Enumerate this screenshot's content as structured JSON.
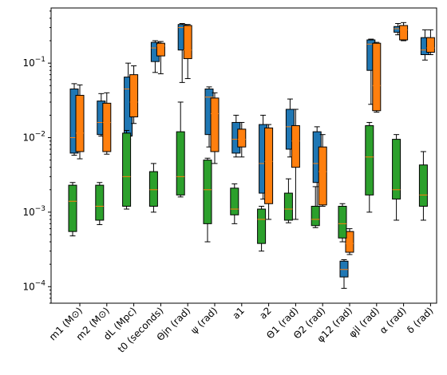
{
  "chart_data": {
    "type": "boxplot",
    "yscale": "log",
    "ylim": [
      6e-05,
      0.55
    ],
    "y_ticks": [
      {
        "value": 0.0001,
        "base": "10",
        "exp": "−4"
      },
      {
        "value": 0.001,
        "base": "10",
        "exp": "−3"
      },
      {
        "value": 0.01,
        "base": "10",
        "exp": "−2"
      },
      {
        "value": 0.1,
        "base": "10",
        "exp": "−1"
      }
    ],
    "categories": [
      "m1 (M⊙)",
      "m2 (M⊙)",
      "dL (Mpc)",
      "t0 (seconds)",
      "Θjn (rad)",
      "ψ (rad)",
      "a1",
      "a2",
      "Θ1 (rad)",
      "Θ2 (rad)",
      "φ12 (rad)",
      "φjl (rad)",
      "α (rad)",
      "δ (rad)"
    ],
    "series": [
      {
        "color": "#1f77b4",
        "boxes": [
          {
            "cat": 0,
            "whislo": 0.0058,
            "q1": 0.0062,
            "med": 0.01,
            "q3": 0.045,
            "whishi": 0.053
          },
          {
            "cat": 1,
            "whislo": 0.0105,
            "q1": 0.011,
            "med": 0.016,
            "q3": 0.031,
            "whishi": 0.039
          },
          {
            "cat": 2,
            "whislo": 0.0095,
            "q1": 0.0105,
            "med": 0.045,
            "q3": 0.065,
            "whishi": 0.1
          },
          {
            "cat": 3,
            "whislo": 0.075,
            "q1": 0.105,
            "med": 0.16,
            "q3": 0.19,
            "whishi": 0.2
          },
          {
            "cat": 4,
            "whislo": 0.055,
            "q1": 0.15,
            "med": 0.3,
            "q3": 0.33,
            "whishi": 0.34
          },
          {
            "cat": 5,
            "whislo": 0.0075,
            "q1": 0.011,
            "med": 0.035,
            "q3": 0.045,
            "whishi": 0.048
          },
          {
            "cat": 6,
            "whislo": 0.0055,
            "q1": 0.0062,
            "med": 0.0095,
            "q3": 0.016,
            "whishi": 0.02
          },
          {
            "cat": 7,
            "whislo": 0.0015,
            "q1": 0.0018,
            "med": 0.0045,
            "q3": 0.015,
            "whishi": 0.02
          },
          {
            "cat": 8,
            "whislo": 0.0055,
            "q1": 0.007,
            "med": 0.014,
            "q3": 0.024,
            "whishi": 0.033
          },
          {
            "cat": 9,
            "whislo": 0.0012,
            "q1": 0.0025,
            "med": 0.0045,
            "q3": 0.012,
            "whishi": 0.014
          },
          {
            "cat": 10,
            "whislo": 9.5e-05,
            "q1": 0.000135,
            "med": 0.00017,
            "q3": 0.00022,
            "whishi": 0.00023
          },
          {
            "cat": 11,
            "whislo": 0.028,
            "q1": 0.08,
            "med": 0.18,
            "q3": 0.205,
            "whishi": 0.21
          },
          {
            "cat": 12,
            "whislo": 0.24,
            "q1": 0.26,
            "med": 0.29,
            "q3": 0.31,
            "whishi": 0.34
          },
          {
            "cat": 13,
            "whislo": 0.11,
            "q1": 0.13,
            "med": 0.15,
            "q3": 0.22,
            "whishi": 0.28
          }
        ]
      },
      {
        "color": "#ff7f0e",
        "boxes": [
          {
            "cat": 0,
            "whislo": 0.0052,
            "q1": 0.0065,
            "med": 0.0115,
            "q3": 0.037,
            "whishi": 0.051
          },
          {
            "cat": 1,
            "whislo": 0.006,
            "q1": 0.0065,
            "med": 0.016,
            "q3": 0.029,
            "whishi": 0.04
          },
          {
            "cat": 2,
            "whislo": 0.0155,
            "q1": 0.019,
            "med": 0.03,
            "q3": 0.07,
            "whishi": 0.092
          },
          {
            "cat": 3,
            "whislo": 0.072,
            "q1": 0.125,
            "med": 0.17,
            "q3": 0.185,
            "whishi": 0.195
          },
          {
            "cat": 4,
            "whislo": 0.062,
            "q1": 0.115,
            "med": 0.15,
            "q3": 0.32,
            "whishi": 0.33
          },
          {
            "cat": 5,
            "whislo": 0.0045,
            "q1": 0.0065,
            "med": 0.021,
            "q3": 0.034,
            "whishi": 0.04
          },
          {
            "cat": 6,
            "whislo": 0.0055,
            "q1": 0.0075,
            "med": 0.0095,
            "q3": 0.013,
            "whishi": 0.016
          },
          {
            "cat": 7,
            "whislo": 0.0008,
            "q1": 0.0013,
            "med": 0.0048,
            "q3": 0.0135,
            "whishi": 0.015
          },
          {
            "cat": 8,
            "whislo": 0.0008,
            "q1": 0.004,
            "med": 0.009,
            "q3": 0.0145,
            "whishi": 0.024
          },
          {
            "cat": 9,
            "whislo": 0.0012,
            "q1": 0.00125,
            "med": 0.0035,
            "q3": 0.0075,
            "whishi": 0.011
          },
          {
            "cat": 10,
            "whislo": 0.00027,
            "q1": 0.00029,
            "med": 0.00038,
            "q3": 0.00055,
            "whishi": 0.0006
          },
          {
            "cat": 11,
            "whislo": 0.022,
            "q1": 0.023,
            "med": 0.05,
            "q3": 0.185,
            "whishi": 0.19
          },
          {
            "cat": 12,
            "whislo": 0.2,
            "q1": 0.205,
            "med": 0.28,
            "q3": 0.32,
            "whishi": 0.35
          },
          {
            "cat": 13,
            "whislo": 0.13,
            "q1": 0.14,
            "med": 0.16,
            "q3": 0.22,
            "whishi": 0.28
          }
        ]
      },
      {
        "color": "#2ca02c",
        "boxes": [
          {
            "cat": 0,
            "whislo": 0.00048,
            "q1": 0.00055,
            "med": 0.0014,
            "q3": 0.0023,
            "whishi": 0.0025
          },
          {
            "cat": 1,
            "whislo": 0.00068,
            "q1": 0.00078,
            "med": 0.0012,
            "q3": 0.0023,
            "whishi": 0.0025
          },
          {
            "cat": 2,
            "whislo": 0.0011,
            "q1": 0.0012,
            "med": 0.003,
            "q3": 0.0115,
            "whishi": 0.0125
          },
          {
            "cat": 3,
            "whislo": 0.001,
            "q1": 0.0012,
            "med": 0.002,
            "q3": 0.0035,
            "whishi": 0.0045
          },
          {
            "cat": 4,
            "whislo": 0.0016,
            "q1": 0.0017,
            "med": 0.003,
            "q3": 0.012,
            "whishi": 0.03
          },
          {
            "cat": 5,
            "whislo": 0.0004,
            "q1": 0.0007,
            "med": 0.002,
            "q3": 0.005,
            "whishi": 0.0053
          },
          {
            "cat": 6,
            "whislo": 0.0007,
            "q1": 0.00092,
            "med": 0.0011,
            "q3": 0.0021,
            "whishi": 0.0024
          },
          {
            "cat": 7,
            "whislo": 0.0003,
            "q1": 0.00038,
            "med": 0.0008,
            "q3": 0.0011,
            "whishi": 0.0012
          },
          {
            "cat": 8,
            "whislo": 0.00072,
            "q1": 0.00078,
            "med": 0.0011,
            "q3": 0.0018,
            "whishi": 0.0028
          },
          {
            "cat": 9,
            "whislo": 0.00062,
            "q1": 0.00066,
            "med": 0.0008,
            "q3": 0.0012,
            "whishi": 0.0022
          },
          {
            "cat": 10,
            "whislo": 0.0004,
            "q1": 0.00045,
            "med": 0.0007,
            "q3": 0.0012,
            "whishi": 0.0013
          },
          {
            "cat": 11,
            "whislo": 0.001,
            "q1": 0.0017,
            "med": 0.0055,
            "q3": 0.0145,
            "whishi": 0.016
          },
          {
            "cat": 12,
            "whislo": 0.00078,
            "q1": 0.0015,
            "med": 0.002,
            "q3": 0.0095,
            "whishi": 0.011
          },
          {
            "cat": 13,
            "whislo": 0.00078,
            "q1": 0.0012,
            "med": 0.0017,
            "q3": 0.0043,
            "whishi": 0.0065
          }
        ]
      }
    ],
    "median_color": "#ff7f0e"
  }
}
